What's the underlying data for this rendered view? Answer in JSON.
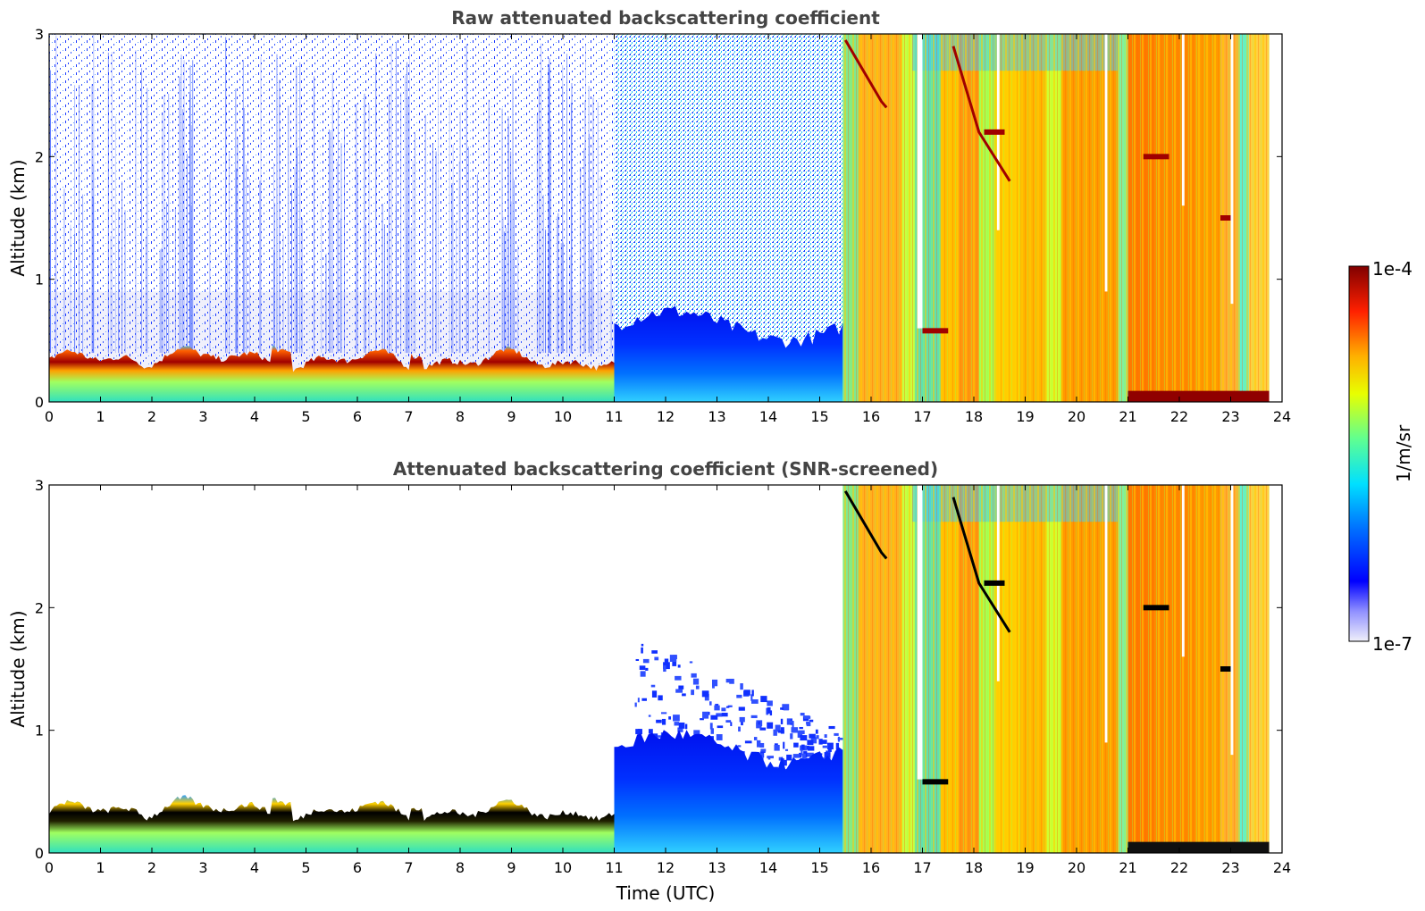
{
  "chart_data": [
    {
      "type": "heatmap",
      "title": "Raw attenuated backscattering coefficient",
      "xlabel": "",
      "ylabel": "Altitude (km)",
      "xlim": [
        0,
        24
      ],
      "ylim": [
        0,
        3
      ],
      "x_ticks": [
        "0",
        "1",
        "2",
        "3",
        "4",
        "5",
        "6",
        "7",
        "8",
        "9",
        "10",
        "11",
        "12",
        "13",
        "14",
        "15",
        "16",
        "17",
        "18",
        "19",
        "20",
        "21",
        "22",
        "23",
        "24"
      ],
      "y_ticks": [
        "0",
        "1",
        "2",
        "3"
      ],
      "x_tick_values": [
        0,
        1,
        2,
        3,
        4,
        5,
        6,
        7,
        8,
        9,
        10,
        11,
        12,
        13,
        14,
        15,
        16,
        17,
        18,
        19,
        20,
        21,
        22,
        23,
        24
      ],
      "y_tick_values": [
        0,
        1,
        2,
        3
      ],
      "data_end_time": 23.75,
      "regimes": [
        {
          "x_start": 0,
          "x_end": 11,
          "description_value": "boundary layer 0.1-0.3 km, high values; sparse noise above"
        },
        {
          "x_start": 11,
          "x_end": 15.45,
          "description_value": "blue aerosol layer up to ~0.7 km; noisy above"
        },
        {
          "x_start": 15.45,
          "x_end": 23.75,
          "description_value": "cloud/precipitation, orange-yellow full column"
        }
      ]
    },
    {
      "type": "heatmap",
      "title": "Attenuated backscattering coefficient (SNR-screened)",
      "xlabel": "Time (UTC)",
      "ylabel": "Altitude (km)",
      "xlim": [
        0,
        24
      ],
      "ylim": [
        0,
        3
      ],
      "x_ticks": [
        "0",
        "1",
        "2",
        "3",
        "4",
        "5",
        "6",
        "7",
        "8",
        "9",
        "10",
        "11",
        "12",
        "13",
        "14",
        "15",
        "16",
        "17",
        "18",
        "19",
        "20",
        "21",
        "22",
        "23",
        "24"
      ],
      "y_ticks": [
        "0",
        "1",
        "2",
        "3"
      ],
      "x_tick_values": [
        0,
        1,
        2,
        3,
        4,
        5,
        6,
        7,
        8,
        9,
        10,
        11,
        12,
        13,
        14,
        15,
        16,
        17,
        18,
        19,
        20,
        21,
        22,
        23,
        24
      ],
      "y_tick_values": [
        0,
        1,
        2,
        3
      ],
      "data_end_time": 23.75,
      "regimes": [
        {
          "x_start": 0,
          "x_end": 11,
          "description_value": "boundary layer only, noise removed"
        },
        {
          "x_start": 11,
          "x_end": 15.45,
          "description_value": "blue aerosol layer up to ~1.3 km, patchy"
        },
        {
          "x_start": 15.45,
          "x_end": 23.75,
          "description_value": "cloud/precipitation, full column"
        }
      ]
    }
  ],
  "colorbar": {
    "label": "1/m/sr",
    "max_label": "1e-4",
    "min_label": "1e-7",
    "range": [
      1e-07,
      0.0001
    ],
    "scale": "log",
    "colormap": [
      "#e6e6f5",
      "#8080ff",
      "#0000ff",
      "#0080ff",
      "#00ffff",
      "#80ff80",
      "#ffff00",
      "#ff8000",
      "#ff0000",
      "#800000"
    ]
  }
}
